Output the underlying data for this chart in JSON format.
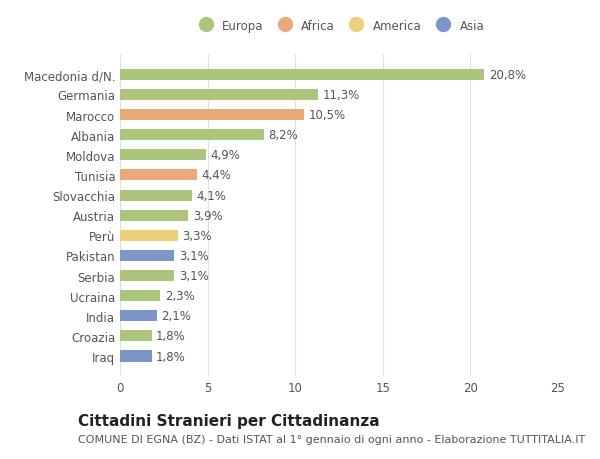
{
  "categories": [
    "Macedonia d/N.",
    "Germania",
    "Marocco",
    "Albania",
    "Moldova",
    "Tunisia",
    "Slovacchia",
    "Austria",
    "Perù",
    "Pakistan",
    "Serbia",
    "Ucraina",
    "India",
    "Croazia",
    "Iraq"
  ],
  "values": [
    20.8,
    11.3,
    10.5,
    8.2,
    4.9,
    4.4,
    4.1,
    3.9,
    3.3,
    3.1,
    3.1,
    2.3,
    2.1,
    1.8,
    1.8
  ],
  "labels": [
    "20,8%",
    "11,3%",
    "10,5%",
    "8,2%",
    "4,9%",
    "4,4%",
    "4,1%",
    "3,9%",
    "3,3%",
    "3,1%",
    "3,1%",
    "2,3%",
    "2,1%",
    "1,8%",
    "1,8%"
  ],
  "colors": [
    "#adc47d",
    "#adc47d",
    "#e8aa7a",
    "#adc47d",
    "#adc47d",
    "#e8aa7a",
    "#adc47d",
    "#adc47d",
    "#ecd07a",
    "#7b96c8",
    "#adc47d",
    "#adc47d",
    "#7b96c8",
    "#adc47d",
    "#7b96c8"
  ],
  "legend_labels": [
    "Europa",
    "Africa",
    "America",
    "Asia"
  ],
  "legend_colors": [
    "#adc47d",
    "#e8aa7a",
    "#ecd07a",
    "#7b96c8"
  ],
  "title": "Cittadini Stranieri per Cittadinanza",
  "subtitle": "COMUNE DI EGNA (BZ) - Dati ISTAT al 1° gennaio di ogni anno - Elaborazione TUTTITALIA.IT",
  "xlim": [
    0,
    25
  ],
  "xticks": [
    0,
    5,
    10,
    15,
    20,
    25
  ],
  "background_color": "#ffffff",
  "grid_color": "#e0e0e0",
  "bar_height": 0.55,
  "label_fontsize": 8.5,
  "tick_fontsize": 8.5,
  "title_fontsize": 11,
  "subtitle_fontsize": 8
}
